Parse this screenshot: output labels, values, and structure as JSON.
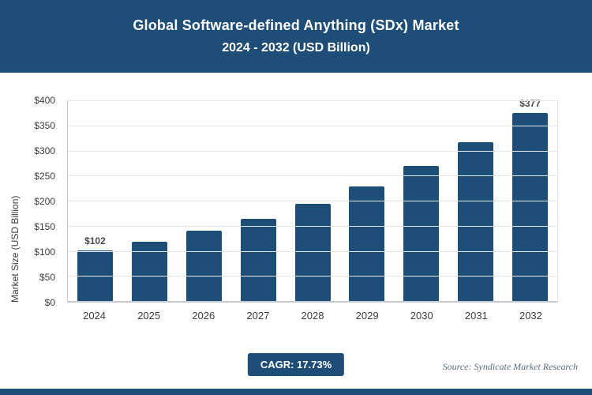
{
  "header": {
    "title_line1": "Global Software-defined Anything (SDx) Market",
    "title_line2": "2024 - 2032 (USD Billion)",
    "bg_color": "#1e4e78"
  },
  "chart_data": {
    "type": "bar",
    "title": "Global Software-defined Anything (SDx) Market 2024 - 2032 (USD Billion)",
    "categories": [
      "2024",
      "2025",
      "2026",
      "2027",
      "2028",
      "2029",
      "2030",
      "2031",
      "2032"
    ],
    "values": [
      102,
      120,
      141,
      166,
      196,
      230,
      271,
      318,
      377
    ],
    "data_labels": [
      "$102",
      "",
      "",
      "",
      "",
      "",
      "",
      "",
      "$377"
    ],
    "xlabel": "",
    "ylabel": "Market Size (USD Billion)",
    "ylim": [
      0,
      400
    ],
    "ytick_step": 50,
    "ytick_labels": [
      "$0",
      "$50",
      "$100",
      "$150",
      "$200",
      "$250",
      "$300",
      "$350",
      "$400"
    ],
    "grid": true,
    "legend_position": "none",
    "bar_color": "#1e4e78"
  },
  "footer": {
    "cagr_label": "CAGR: 17.73%",
    "source": "Source: Syndicate Market Research"
  }
}
